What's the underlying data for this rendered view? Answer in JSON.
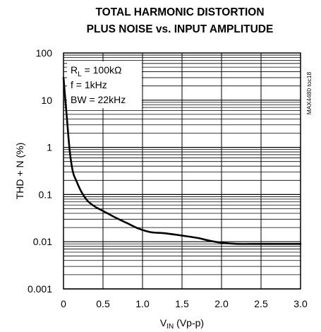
{
  "chart_data": {
    "type": "line",
    "title_line1": "TOTAL HARMONIC DISTORTION",
    "title_line2": "PLUS NOISE vs. INPUT AMPLITUDE",
    "xlabel_main": "V",
    "xlabel_sub": "IN",
    "xlabel_rest": " (Vp-p)",
    "ylabel": "THD + N (%)",
    "xlim": [
      0,
      3.0
    ],
    "ylim": [
      0.001,
      100
    ],
    "yscale": "log",
    "grid": true,
    "x_ticks": [
      "0",
      "0.5",
      "1.0",
      "1.5",
      "2.0",
      "2.5",
      "3.0"
    ],
    "x_tick_values": [
      0,
      0.5,
      1.0,
      1.5,
      2.0,
      2.5,
      3.0
    ],
    "y_ticks": [
      "0.001",
      "0.01",
      "0.1",
      "1",
      "10",
      "100"
    ],
    "y_tick_values": [
      0.001,
      0.01,
      0.1,
      1,
      10,
      100
    ],
    "conditions": {
      "rl_main": "R",
      "rl_sub": "L",
      "rl_rest": " = 100kΩ",
      "freq": "f = 1kHz",
      "bw": "BW = 22kHz"
    },
    "side_tag": "MAX4480 toc18",
    "series": [
      {
        "x": [
          0.0,
          0.02,
          0.05,
          0.08,
          0.12,
          0.16,
          0.22,
          0.3,
          0.4,
          0.5,
          0.65,
          0.8,
          0.95,
          1.1,
          1.3,
          1.5,
          1.7,
          1.85,
          2.0,
          2.2,
          2.5,
          3.0
        ],
        "y": [
          30,
          12,
          3,
          0.8,
          0.3,
          0.2,
          0.12,
          0.075,
          0.055,
          0.045,
          0.033,
          0.025,
          0.019,
          0.016,
          0.015,
          0.0135,
          0.012,
          0.0105,
          0.0095,
          0.009,
          0.009,
          0.009
        ]
      }
    ]
  }
}
